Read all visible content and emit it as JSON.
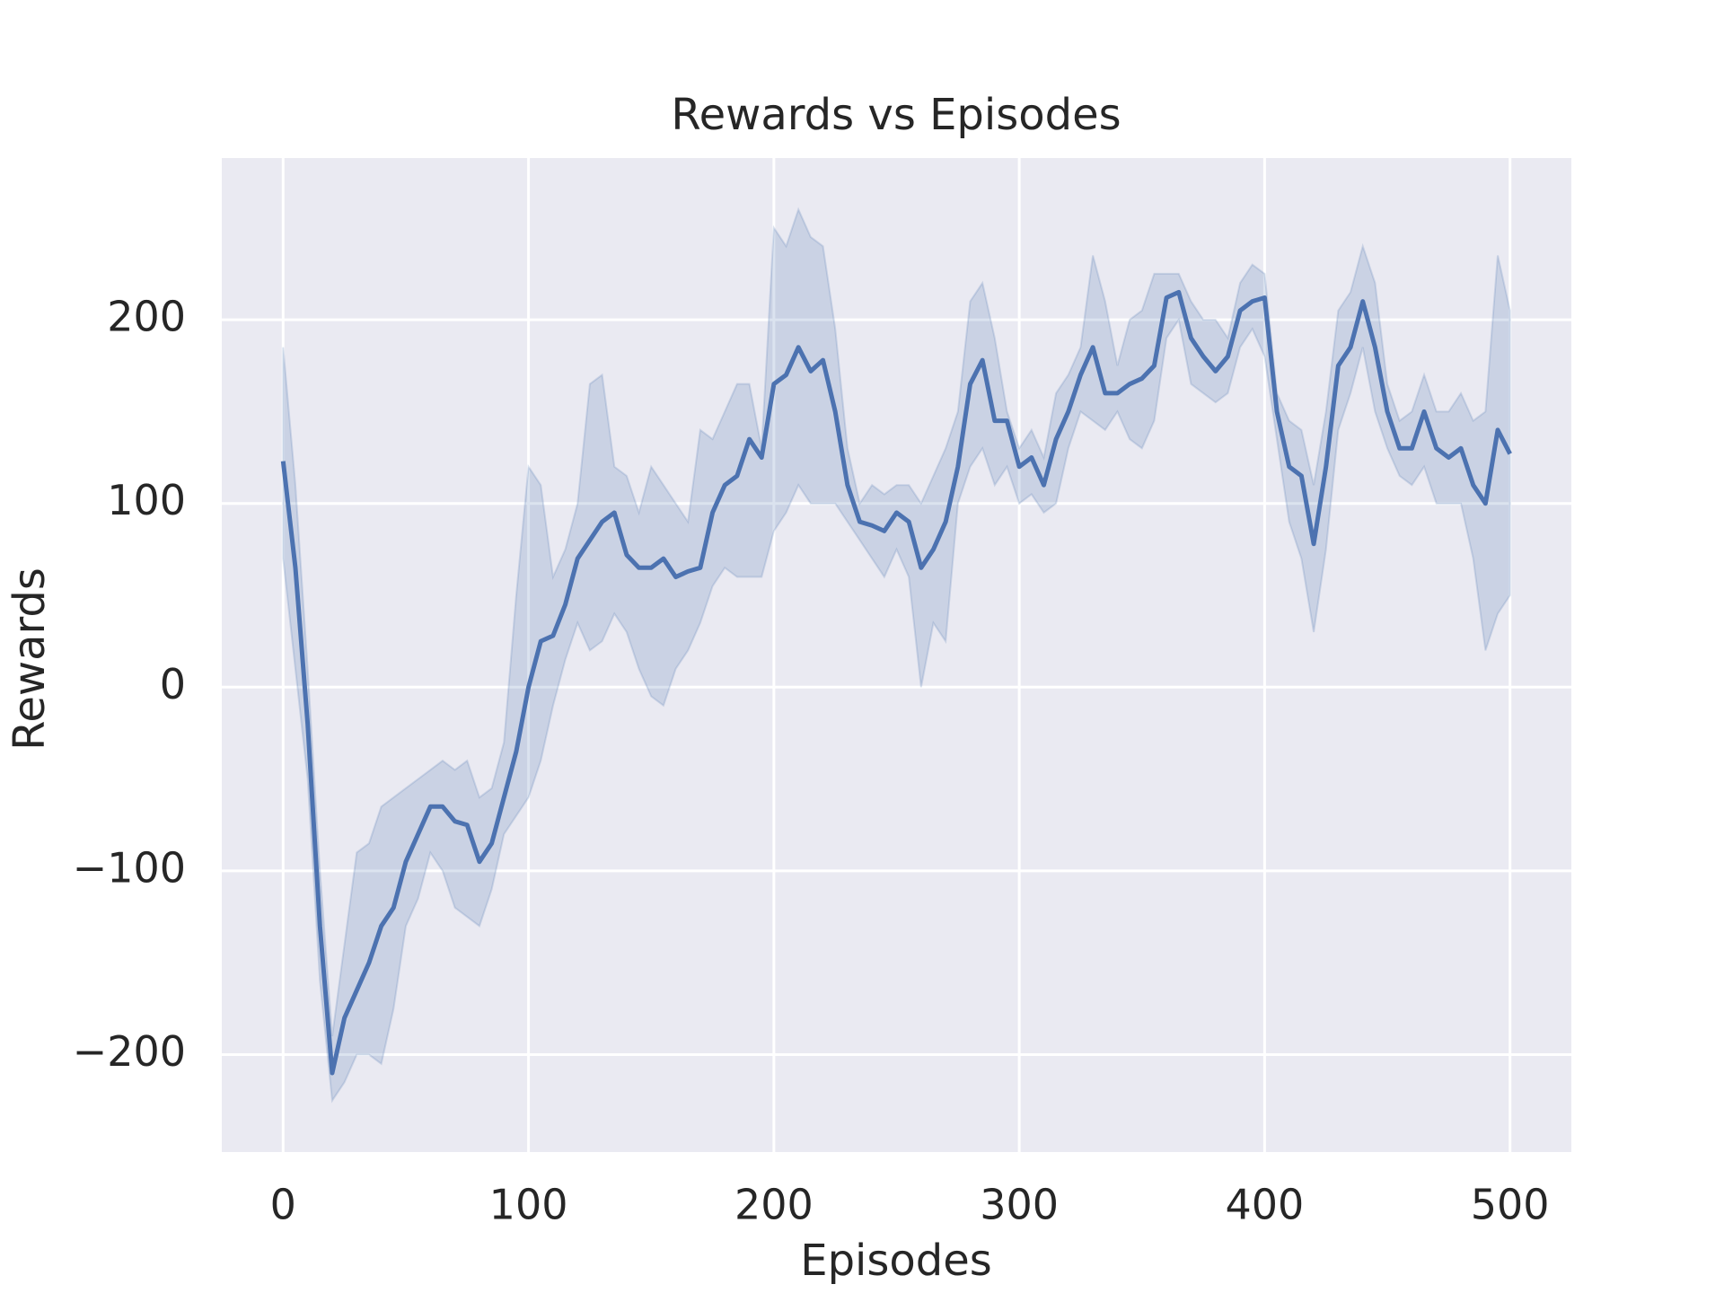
{
  "chart_data": {
    "type": "line",
    "title": "Rewards vs Episodes",
    "x_label": "Episodes",
    "y_label": "Rewards",
    "x": [
      0,
      5,
      10,
      15,
      20,
      25,
      30,
      35,
      40,
      45,
      50,
      55,
      60,
      65,
      70,
      75,
      80,
      85,
      90,
      95,
      100,
      105,
      110,
      115,
      120,
      125,
      130,
      135,
      140,
      145,
      150,
      155,
      160,
      165,
      170,
      175,
      180,
      185,
      190,
      195,
      200,
      205,
      210,
      215,
      220,
      225,
      230,
      235,
      240,
      245,
      250,
      255,
      260,
      265,
      270,
      275,
      280,
      285,
      290,
      295,
      300,
      305,
      310,
      315,
      320,
      325,
      330,
      335,
      340,
      345,
      350,
      355,
      360,
      365,
      370,
      375,
      380,
      385,
      390,
      395,
      400,
      405,
      410,
      415,
      420,
      425,
      430,
      435,
      440,
      445,
      450,
      455,
      460,
      465,
      470,
      475,
      480,
      485,
      490,
      495,
      500
    ],
    "series": [
      {
        "color": "#4c72b0",
        "values": [
          123,
          65,
          -20,
          -130,
          -210,
          -180,
          -165,
          -150,
          -130,
          -120,
          -95,
          -80,
          -65,
          -65,
          -73,
          -75,
          -95,
          -85,
          -60,
          -35,
          0,
          25,
          28,
          45,
          70,
          80,
          90,
          95,
          72,
          65,
          65,
          70,
          60,
          63,
          65,
          95,
          110,
          115,
          135,
          125,
          165,
          170,
          185,
          172,
          178,
          150,
          110,
          90,
          88,
          85,
          95,
          90,
          65,
          75,
          90,
          120,
          165,
          178,
          145,
          145,
          120,
          125,
          110,
          135,
          150,
          170,
          185,
          160,
          160,
          165,
          168,
          175,
          212,
          215,
          190,
          180,
          172,
          180,
          205,
          210,
          212,
          150,
          120,
          115,
          78,
          120,
          175,
          185,
          210,
          185,
          150,
          130,
          130,
          150,
          130,
          125,
          130,
          110,
          100,
          140,
          127
        ],
        "upper": [
          185,
          110,
          10,
          -100,
          -190,
          -140,
          -90,
          -85,
          -65,
          -60,
          -55,
          -50,
          -45,
          -40,
          -45,
          -40,
          -60,
          -55,
          -30,
          50,
          120,
          110,
          60,
          75,
          100,
          165,
          170,
          120,
          115,
          95,
          120,
          110,
          100,
          90,
          140,
          135,
          150,
          165,
          165,
          130,
          250,
          240,
          260,
          245,
          240,
          195,
          130,
          100,
          110,
          105,
          110,
          110,
          100,
          115,
          130,
          150,
          210,
          220,
          190,
          150,
          130,
          140,
          125,
          160,
          170,
          185,
          235,
          210,
          175,
          200,
          205,
          225,
          225,
          225,
          210,
          200,
          200,
          190,
          220,
          230,
          225,
          160,
          145,
          140,
          110,
          150,
          205,
          215,
          240,
          220,
          165,
          145,
          150,
          170,
          150,
          150,
          160,
          145,
          150,
          235,
          205
        ],
        "lower": [
          70,
          10,
          -50,
          -160,
          -225,
          -215,
          -200,
          -200,
          -205,
          -175,
          -130,
          -115,
          -90,
          -100,
          -120,
          -125,
          -130,
          -110,
          -80,
          -70,
          -60,
          -40,
          -10,
          15,
          35,
          20,
          25,
          40,
          30,
          10,
          -5,
          -10,
          10,
          20,
          35,
          55,
          65,
          60,
          60,
          60,
          85,
          95,
          110,
          100,
          100,
          100,
          90,
          80,
          70,
          60,
          75,
          60,
          0,
          35,
          25,
          100,
          120,
          130,
          110,
          120,
          100,
          105,
          95,
          100,
          130,
          150,
          145,
          140,
          150,
          135,
          130,
          145,
          190,
          200,
          165,
          160,
          155,
          160,
          185,
          195,
          180,
          135,
          90,
          70,
          30,
          75,
          140,
          160,
          185,
          150,
          130,
          115,
          110,
          120,
          100,
          100,
          100,
          70,
          20,
          40,
          50
        ]
      }
    ],
    "xlim": [
      -25,
      525
    ],
    "ylim": [
      -253,
      288
    ],
    "xticks": [
      0,
      100,
      200,
      300,
      400,
      500
    ],
    "yticks": [
      {
        "value": -200,
        "label": "−200"
      },
      {
        "value": -100,
        "label": "−100"
      },
      0,
      100,
      200
    ],
    "grid": true
  }
}
